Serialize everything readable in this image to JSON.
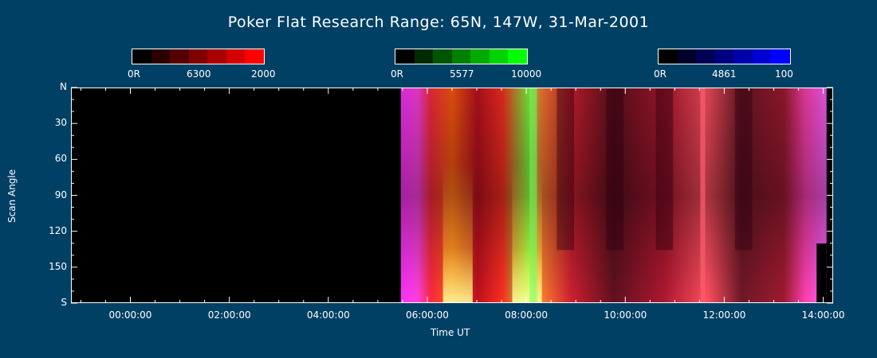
{
  "chart_data": {
    "type": "heatmap",
    "title": "Poker Flat Research Range: 65N, 147W, 31-Mar-2001",
    "xlabel": "Time UT",
    "ylabel": "Scan Angle",
    "x_ticks": [
      "00:00:00",
      "02:00:00",
      "04:00:00",
      "06:00:00",
      "08:00:00",
      "10:00:00",
      "12:00:00",
      "14:00:00"
    ],
    "x_range_hours": [
      -1.2,
      14.2
    ],
    "y_ticks": [
      "N",
      "30",
      "60",
      "90",
      "120",
      "150",
      "S"
    ],
    "y_range": [
      0,
      180
    ],
    "data_start_hour": 5.45,
    "data_end_hour": 14.05,
    "colorbars": [
      {
        "channel": "6300",
        "min_label": "0R",
        "max_label": "2000",
        "color": "#ff0000",
        "steps": [
          "#000000",
          "#2b0000",
          "#550000",
          "#800000",
          "#aa0000",
          "#d40000",
          "#ff0000"
        ]
      },
      {
        "channel": "5577",
        "min_label": "0R",
        "max_label": "10000",
        "color": "#00ff00",
        "steps": [
          "#000000",
          "#002b00",
          "#005500",
          "#008000",
          "#00aa00",
          "#00d400",
          "#00ff00"
        ]
      },
      {
        "channel": "4861",
        "min_label": "0R",
        "max_label": "100",
        "color": "#0000ff",
        "steps": [
          "#000000",
          "#00002b",
          "#000055",
          "#000080",
          "#0000aa",
          "#0000d4",
          "#0000ff"
        ]
      }
    ]
  }
}
